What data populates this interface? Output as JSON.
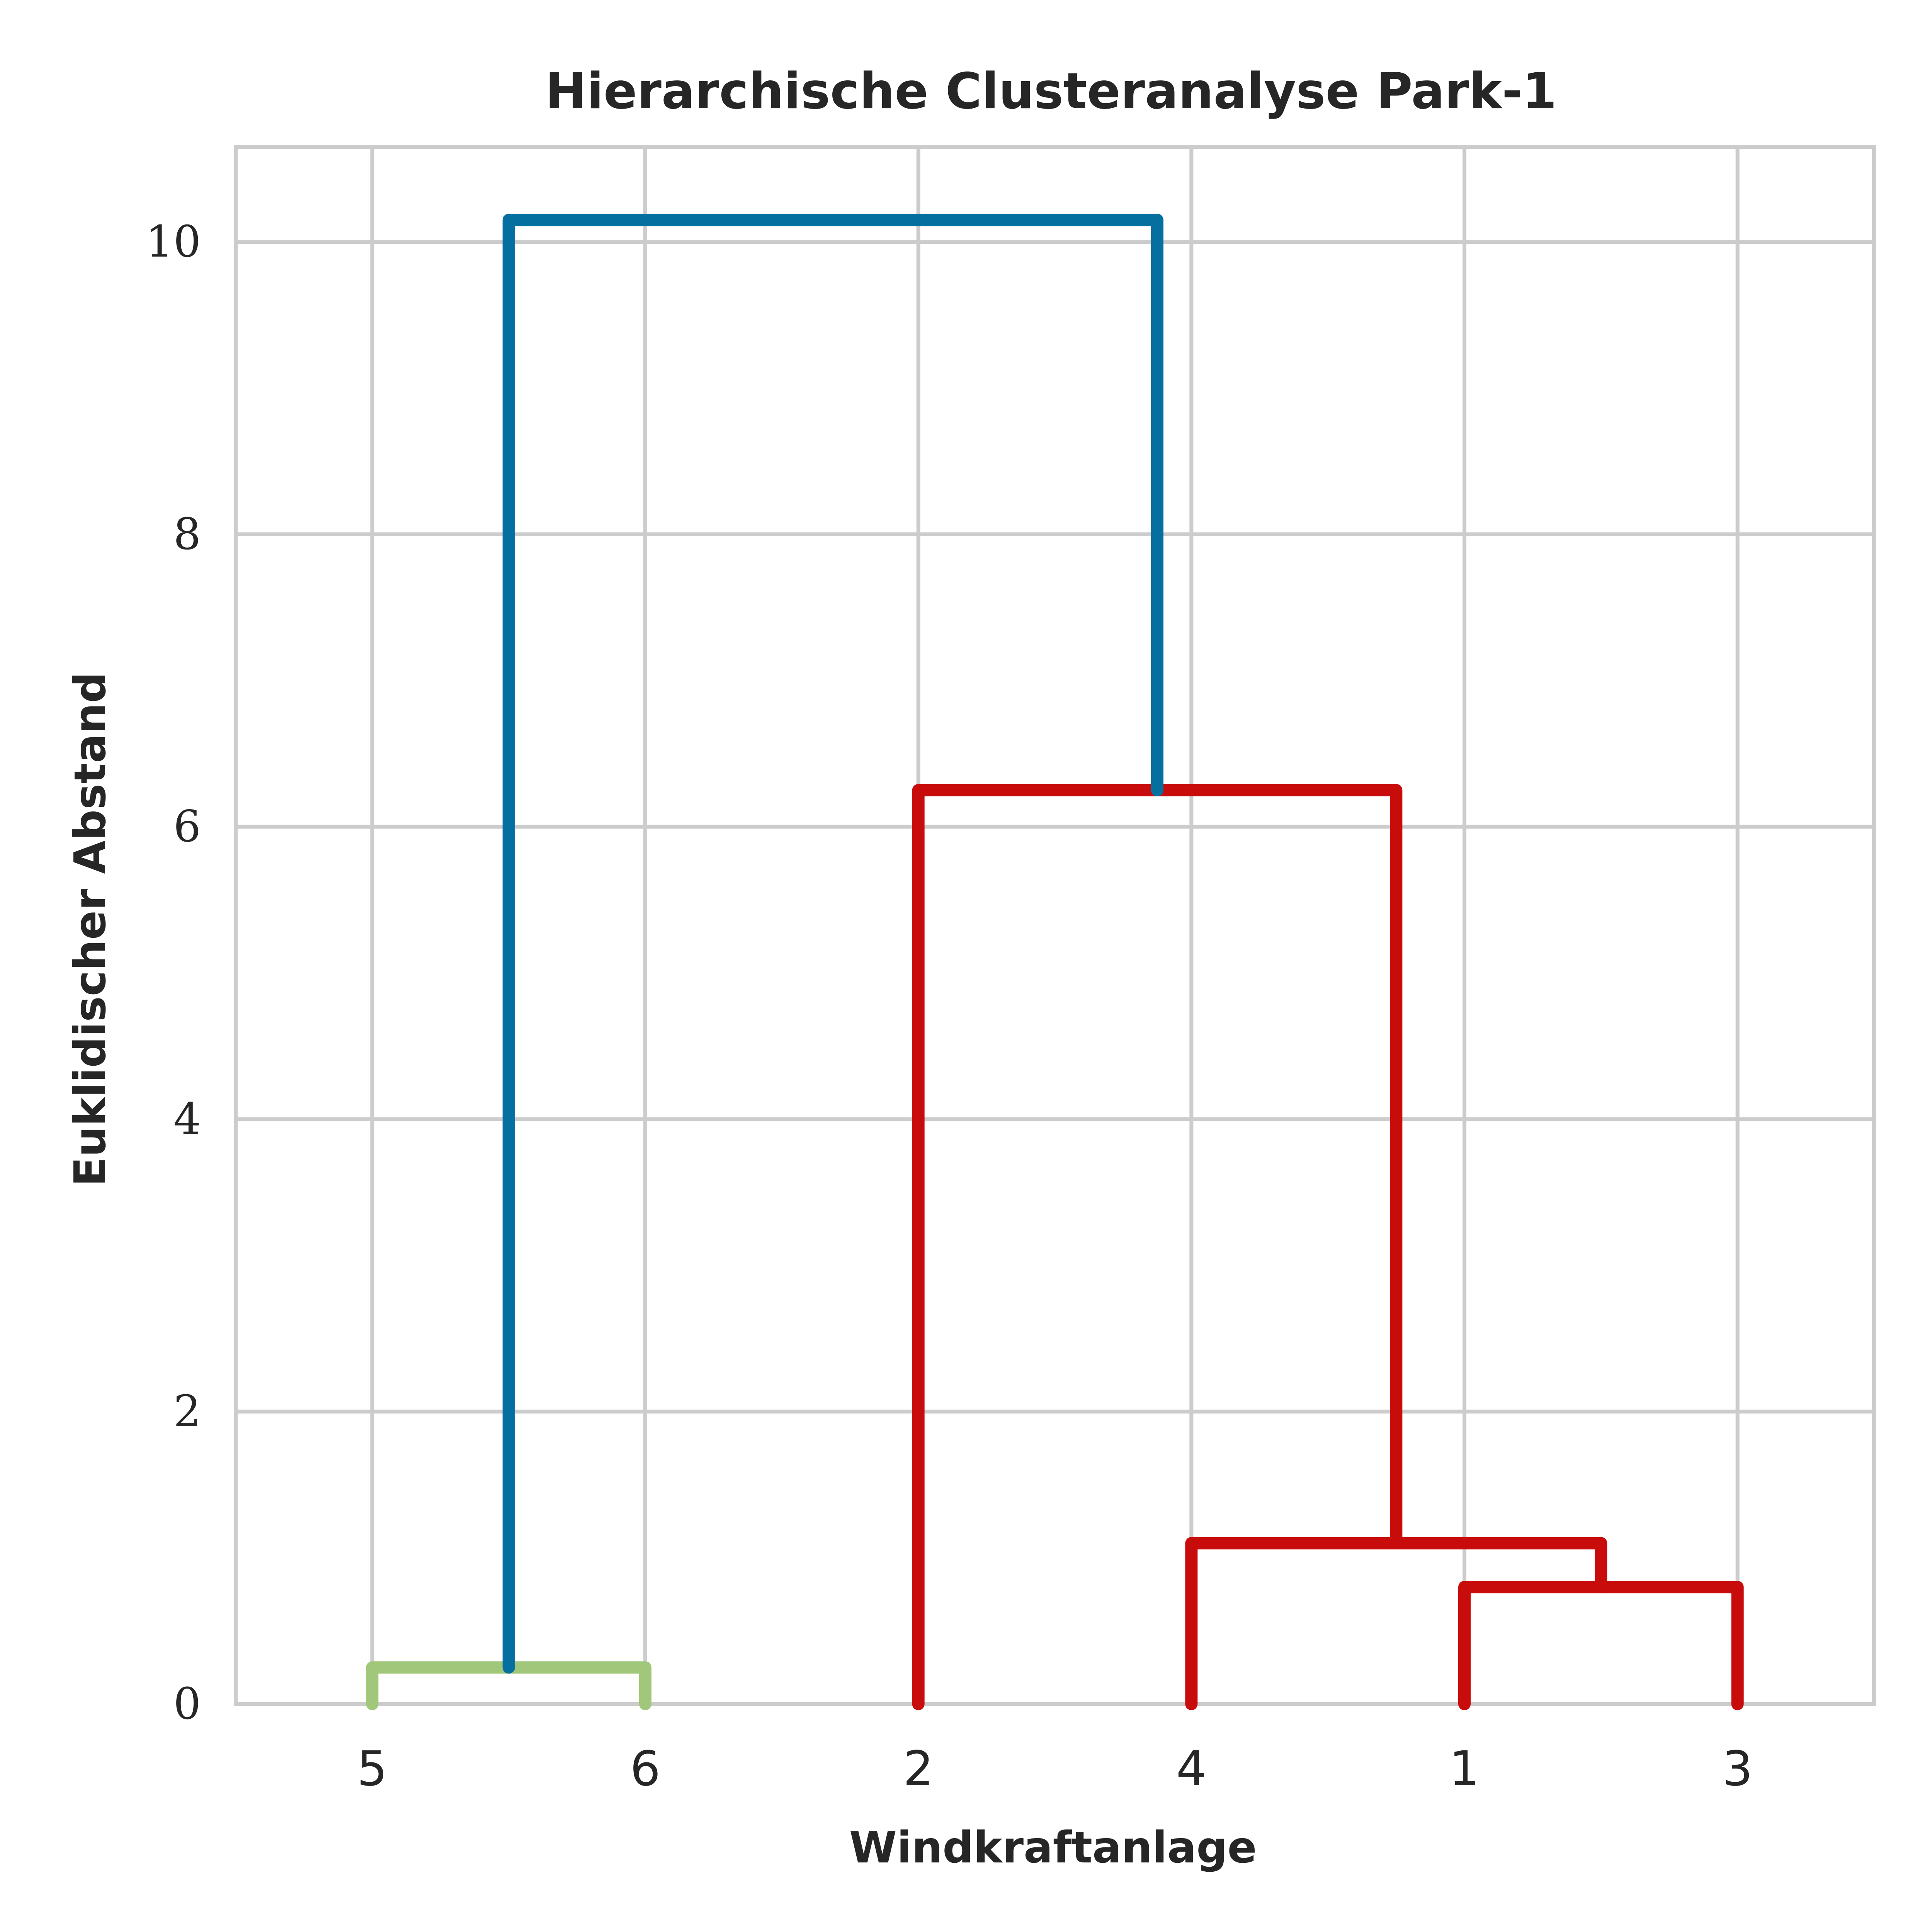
{
  "chart_data": {
    "type": "dendrogram",
    "title": "Hierarchische Clusteranalyse Park-1",
    "xlabel": "Windkraftanlage",
    "ylabel": "Euklidischer Abstand",
    "leaves": [
      "5",
      "6",
      "2",
      "4",
      "1",
      "3"
    ],
    "ylim": [
      0,
      10.65
    ],
    "yticks": [
      "0",
      "2",
      "4",
      "6",
      "8",
      "10"
    ],
    "grid": true,
    "links": [
      {
        "left": "1",
        "right": "3",
        "left_height": 0,
        "right_height": 0,
        "height": 0.8,
        "color": "#c80b0b"
      },
      {
        "left": "4",
        "right": "1+3",
        "left_height": 0,
        "right_height": 0.8,
        "height": 1.1,
        "color": "#c80b0b"
      },
      {
        "left": "2",
        "right": "4+1+3",
        "left_height": 0,
        "right_height": 1.1,
        "height": 6.25,
        "color": "#c80b0b"
      },
      {
        "left": "5",
        "right": "6",
        "left_height": 0,
        "right_height": 0,
        "height": 0.25,
        "color": "#a1c77b"
      },
      {
        "left": "5+6",
        "right": "2+4+1+3",
        "left_height": 0.25,
        "right_height": 6.25,
        "height": 10.15,
        "color": "#0570a0"
      }
    ]
  }
}
